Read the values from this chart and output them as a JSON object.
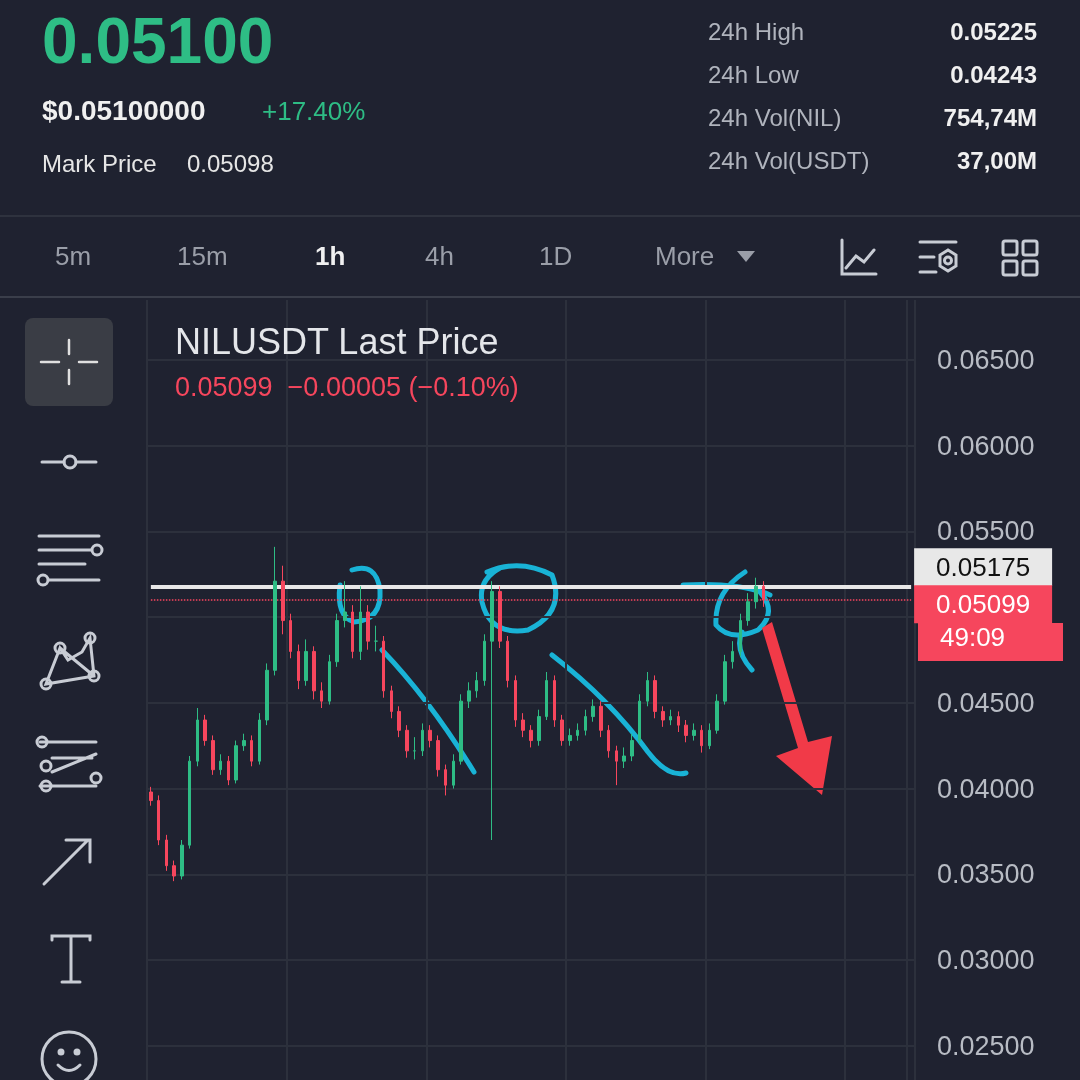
{
  "chart_data": {
    "type": "candlestick",
    "title": "NILUSDT Last Price",
    "subtitle": "0.05099  −0.00005 (−0.10%)",
    "annotations": [
      "0.05100",
      "$0.05100000",
      "+17.40%",
      "Mark Price",
      "0.05098",
      "24h High",
      "0.05225",
      "24h Low",
      "0.04243",
      "24h Vol(NIL)",
      "754,74M",
      "24h Vol(USDT)",
      "37,00M",
      "5m",
      "15m",
      "1h",
      "4h",
      "1D",
      "More",
      "49:09"
    ],
    "categories": [
      null,
      null,
      null,
      null,
      null,
      null,
      null,
      null,
      null,
      null,
      null,
      null,
      null,
      null,
      null,
      null,
      null,
      null,
      null,
      null,
      null,
      null,
      null,
      null,
      null,
      null,
      null,
      null,
      null,
      null,
      null,
      null,
      null,
      null,
      null,
      null,
      null,
      null,
      null,
      null,
      null,
      null,
      null,
      null,
      null,
      null,
      null,
      null,
      null,
      null,
      null,
      null,
      null,
      null,
      null,
      null,
      null,
      null,
      null,
      null,
      null,
      null,
      null,
      null,
      null,
      null,
      null,
      null,
      null,
      null,
      null,
      null,
      null,
      null,
      null,
      null,
      null,
      null,
      null,
      null,
      null,
      null,
      null,
      null,
      null,
      null,
      null,
      null,
      null,
      null,
      null,
      null,
      null,
      null,
      null,
      null,
      null,
      null,
      null
    ],
    "ohlc": [
      [
        0.0398,
        0.0401,
        0.039,
        0.0393
      ],
      [
        0.0393,
        0.0396,
        0.0367,
        0.037
      ],
      [
        0.037,
        0.0373,
        0.0352,
        0.0355
      ],
      [
        0.0355,
        0.0358,
        0.0346,
        0.0349
      ],
      [
        0.0349,
        0.037,
        0.0347,
        0.0367
      ],
      [
        0.0367,
        0.0419,
        0.0365,
        0.0416
      ],
      [
        0.0416,
        0.0447,
        0.0413,
        0.044
      ],
      [
        0.044,
        0.0443,
        0.0425,
        0.0428
      ],
      [
        0.0428,
        0.0431,
        0.0408,
        0.0411
      ],
      [
        0.0411,
        0.042,
        0.0408,
        0.0416
      ],
      [
        0.0416,
        0.0419,
        0.0402,
        0.0405
      ],
      [
        0.0405,
        0.0428,
        0.0403,
        0.0425
      ],
      [
        0.0425,
        0.0432,
        0.0422,
        0.0428
      ],
      [
        0.0428,
        0.0431,
        0.0413,
        0.0416
      ],
      [
        0.0416,
        0.0444,
        0.0414,
        0.044
      ],
      [
        0.044,
        0.0473,
        0.0437,
        0.0469
      ],
      [
        0.0469,
        0.0541,
        0.0466,
        0.0521
      ],
      [
        0.0521,
        0.053,
        0.049,
        0.0498
      ],
      [
        0.0498,
        0.0502,
        0.0476,
        0.048
      ],
      [
        0.048,
        0.0484,
        0.0458,
        0.0463
      ],
      [
        0.0463,
        0.0487,
        0.046,
        0.048
      ],
      [
        0.048,
        0.0483,
        0.0452,
        0.0457
      ],
      [
        0.0457,
        0.0462,
        0.0447,
        0.0451
      ],
      [
        0.0451,
        0.0478,
        0.0449,
        0.0474
      ],
      [
        0.0474,
        0.0502,
        0.0471,
        0.0498
      ],
      [
        0.0498,
        0.0521,
        0.0494,
        0.0503
      ],
      [
        0.0503,
        0.0507,
        0.0476,
        0.048
      ],
      [
        0.048,
        0.0518,
        0.0475,
        0.0503
      ],
      [
        0.0503,
        0.0507,
        0.0481,
        0.0486
      ],
      [
        0.0486,
        0.0495,
        0.048,
        0.0486
      ],
      [
        0.0486,
        0.0489,
        0.0453,
        0.0457
      ],
      [
        0.0457,
        0.046,
        0.0441,
        0.0445
      ],
      [
        0.0445,
        0.0448,
        0.043,
        0.0434
      ],
      [
        0.0434,
        0.0437,
        0.0418,
        0.0422
      ],
      [
        0.0422,
        0.043,
        0.0417,
        0.0422
      ],
      [
        0.0422,
        0.0438,
        0.0419,
        0.0434
      ],
      [
        0.0434,
        0.0437,
        0.0424,
        0.0428
      ],
      [
        0.0428,
        0.0431,
        0.0407,
        0.0411
      ],
      [
        0.0411,
        0.0414,
        0.0396,
        0.0402
      ],
      [
        0.0402,
        0.042,
        0.04,
        0.0416
      ],
      [
        0.0416,
        0.0455,
        0.0414,
        0.0451
      ],
      [
        0.0451,
        0.0462,
        0.0447,
        0.0457
      ],
      [
        0.0457,
        0.0468,
        0.0453,
        0.0463
      ],
      [
        0.0463,
        0.049,
        0.046,
        0.0486
      ],
      [
        0.0486,
        0.0521,
        0.037,
        0.0515
      ],
      [
        0.0515,
        0.0518,
        0.0482,
        0.0486
      ],
      [
        0.0486,
        0.0489,
        0.0459,
        0.0463
      ],
      [
        0.0463,
        0.0466,
        0.0436,
        0.044
      ],
      [
        0.044,
        0.0444,
        0.043,
        0.0434
      ],
      [
        0.0434,
        0.0437,
        0.0424,
        0.0428
      ],
      [
        0.0428,
        0.0446,
        0.0425,
        0.0442
      ],
      [
        0.0442,
        0.0468,
        0.044,
        0.0463
      ],
      [
        0.0463,
        0.0466,
        0.0436,
        0.044
      ],
      [
        0.044,
        0.0443,
        0.0425,
        0.0428
      ],
      [
        0.0428,
        0.0435,
        0.0425,
        0.0431
      ],
      [
        0.0431,
        0.0438,
        0.0428,
        0.0434
      ],
      [
        0.0434,
        0.0446,
        0.0431,
        0.0442
      ],
      [
        0.0442,
        0.0452,
        0.0439,
        0.0448
      ],
      [
        0.0448,
        0.0451,
        0.043,
        0.0434
      ],
      [
        0.0434,
        0.0437,
        0.0418,
        0.0422
      ],
      [
        0.0422,
        0.0425,
        0.0402,
        0.0416
      ],
      [
        0.0416,
        0.0424,
        0.0412,
        0.0419
      ],
      [
        0.0419,
        0.0432,
        0.0416,
        0.0428
      ],
      [
        0.0428,
        0.0455,
        0.0426,
        0.0451
      ],
      [
        0.0451,
        0.0468,
        0.0448,
        0.0463
      ],
      [
        0.0463,
        0.0466,
        0.0441,
        0.0445
      ],
      [
        0.0445,
        0.0448,
        0.0436,
        0.044
      ],
      [
        0.044,
        0.0446,
        0.0437,
        0.0442
      ],
      [
        0.0442,
        0.0445,
        0.0433,
        0.0437
      ],
      [
        0.0437,
        0.044,
        0.0427,
        0.0431
      ],
      [
        0.0431,
        0.0438,
        0.0428,
        0.0434
      ],
      [
        0.0434,
        0.0437,
        0.0421,
        0.0425
      ],
      [
        0.0425,
        0.0438,
        0.0423,
        0.0434
      ],
      [
        0.0434,
        0.0455,
        0.0432,
        0.0451
      ],
      [
        0.0451,
        0.0478,
        0.0449,
        0.0474
      ],
      [
        0.0474,
        0.0486,
        0.047,
        0.048
      ],
      [
        0.048,
        0.0502,
        0.0477,
        0.0498
      ],
      [
        0.0498,
        0.0514,
        0.0495,
        0.0509
      ],
      [
        0.0509,
        0.0523,
        0.0505,
        0.0518
      ],
      [
        0.0518,
        0.0521,
        0.0506,
        0.051
      ],
      null,
      null,
      null,
      null,
      null,
      null,
      null,
      null,
      null,
      null,
      null,
      null,
      null,
      null,
      null,
      null,
      null,
      null,
      null
    ],
    "ylim": [
      0.023,
      0.0685
    ],
    "yticks": [
      {
        "value": 0.025,
        "label": "0.02500"
      },
      {
        "value": 0.03,
        "label": "0.03000"
      },
      {
        "value": 0.035,
        "label": "0.03500"
      },
      {
        "value": 0.04,
        "label": "0.04000"
      },
      {
        "value": 0.045,
        "label": "0.04500"
      },
      {
        "value": 0.05,
        "label": null
      },
      {
        "value": 0.055,
        "label": "0.05500"
      },
      {
        "value": 0.06,
        "label": "0.06000"
      },
      {
        "value": 0.065,
        "label": "0.06500"
      }
    ],
    "ref_lines": [
      {
        "axis": "y",
        "value": 0.05175,
        "label": "0.05175",
        "color": "#e8e8e8",
        "line_style": "solid"
      },
      {
        "axis": "y",
        "value": 0.05099,
        "label": "0.05099",
        "color": "#f6465d",
        "line_style": "dotted"
      }
    ],
    "grid": true,
    "tick_labels": "y"
  }
}
